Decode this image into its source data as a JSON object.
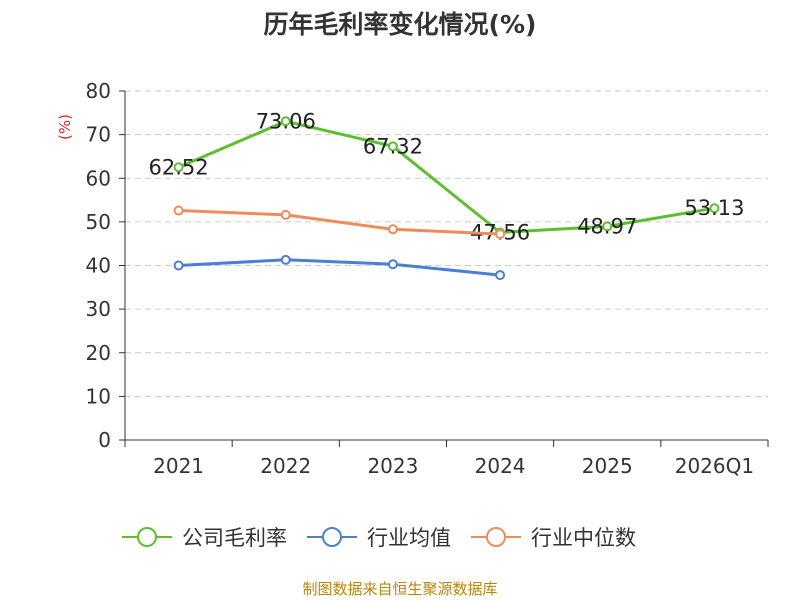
{
  "chart_data": {
    "type": "line",
    "title": "历年毛利率变化情况(%)",
    "ylabel": "(%)",
    "xlabel": "",
    "categories": [
      "2021",
      "2022",
      "2023",
      "2024",
      "2025",
      "2026Q1"
    ],
    "ylim": [
      0,
      80
    ],
    "yticks": [
      "0",
      "10",
      "20",
      "30",
      "40",
      "50",
      "60",
      "70",
      "80"
    ],
    "grid": true,
    "legend_position": "bottom",
    "series": [
      {
        "name": "公司毛利率",
        "color": "#5cc02e",
        "values": [
          62.52,
          73.06,
          67.32,
          47.56,
          48.97,
          53.13
        ],
        "labels": [
          "62.52",
          "73.06",
          "67.32",
          "47.56",
          "48.97",
          "53.13"
        ]
      },
      {
        "name": "行业均值",
        "color": "#4a7fd6",
        "values": [
          40.0,
          41.3,
          40.3,
          37.8,
          null,
          null
        ]
      },
      {
        "name": "行业中位数",
        "color": "#f08c5a",
        "values": [
          52.6,
          51.6,
          48.3,
          47.2,
          null,
          null
        ]
      }
    ]
  },
  "source_text": "制图数据来自恒生聚源数据库"
}
